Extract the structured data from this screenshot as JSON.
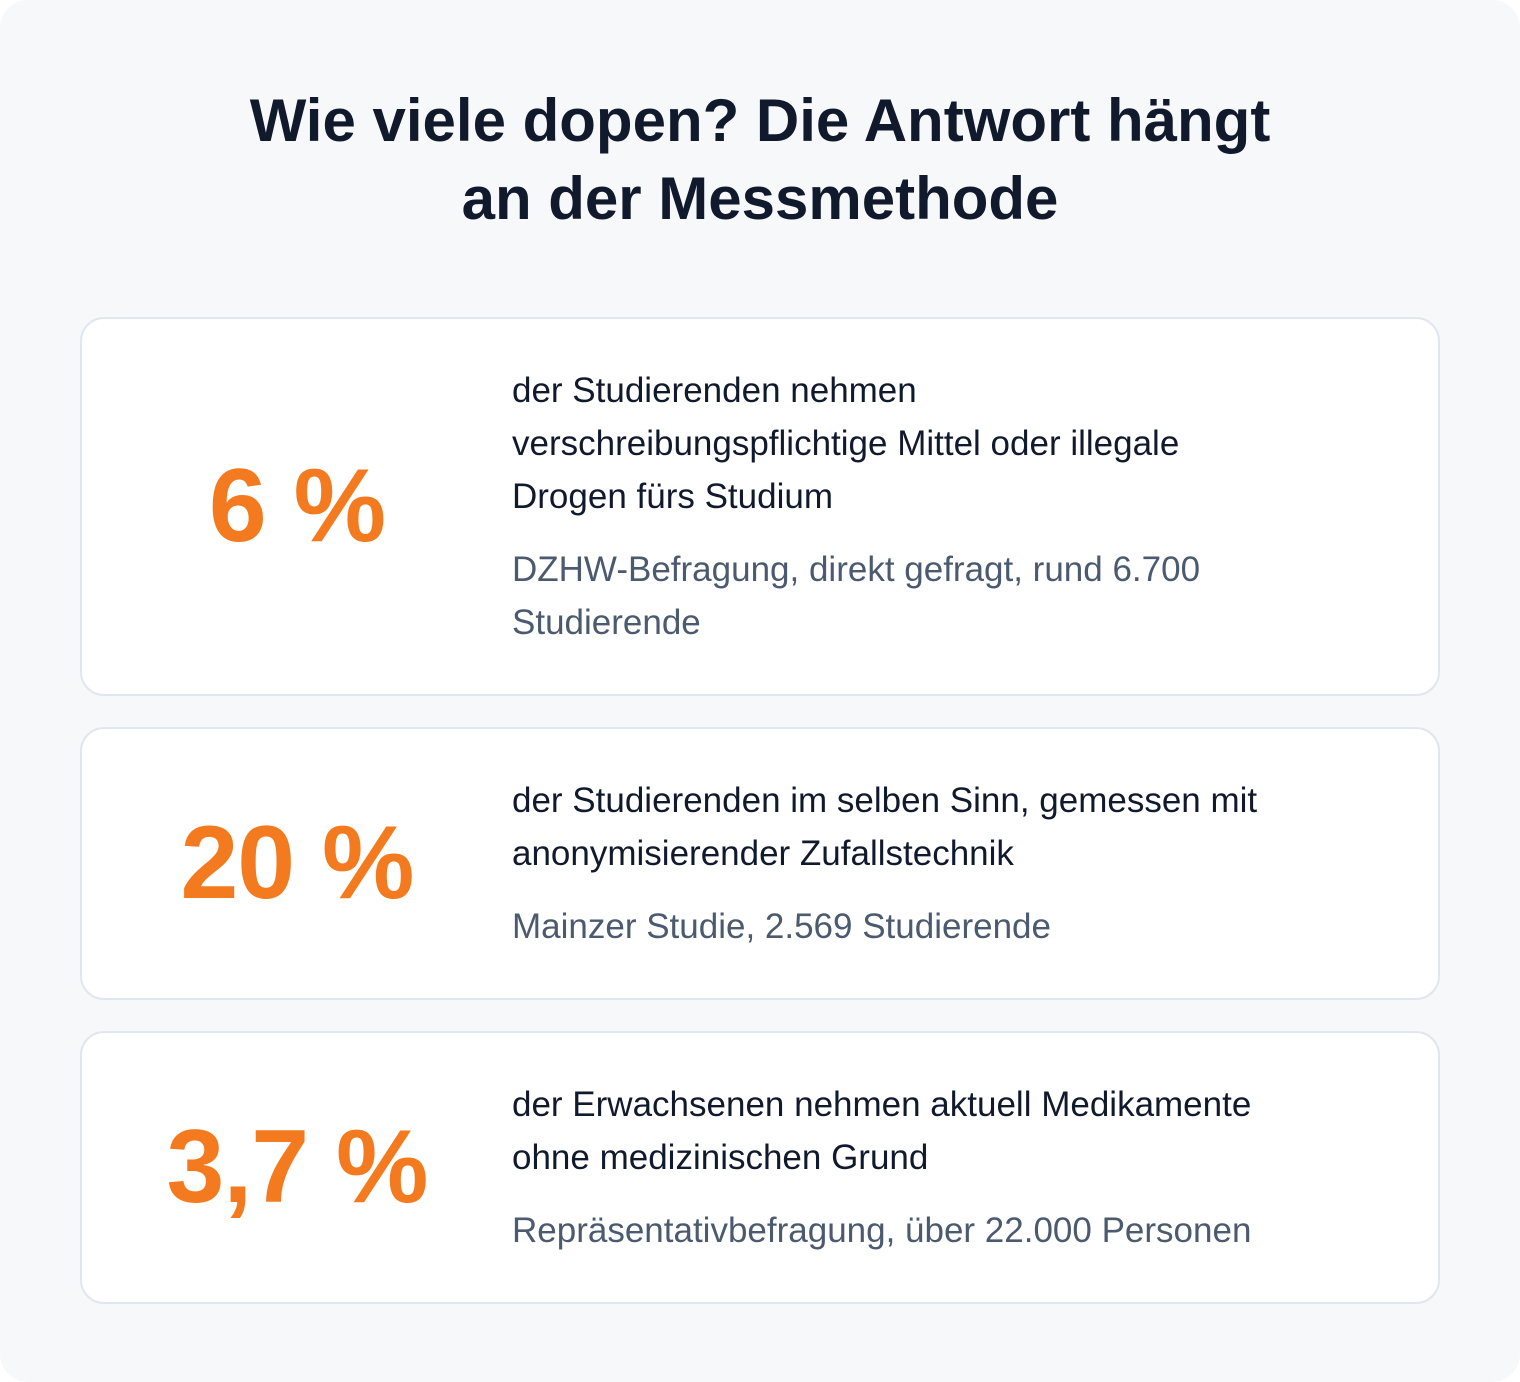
{
  "title": {
    "line1": "Wie viele dopen? Die Antwort hängt",
    "line2": "an der Messmethode"
  },
  "colors": {
    "accent": "#f47a1f",
    "text": "#111a2d",
    "muted": "#4b5a6e",
    "background": "#f7f8fa",
    "card_border": "#e2e6ee"
  },
  "stats": [
    {
      "value": "6 %",
      "description_lines": [
        "der Studierenden nehmen",
        "verschreibungspflichtige Mittel oder illegale",
        "Drogen fürs Studium"
      ],
      "source_lines": [
        "DZHW-Befragung, direkt gefragt, rund 6.700",
        "Studierende"
      ]
    },
    {
      "value": "20 %",
      "description_lines": [
        "der Studierenden im selben Sinn, gemessen mit",
        "anonymisierender Zufallstechnik"
      ],
      "source_lines": [
        "Mainzer Studie, 2.569 Studierende"
      ]
    },
    {
      "value": "3,7 %",
      "description_lines": [
        "der Erwachsenen nehmen aktuell Medikamente",
        "ohne medizinischen Grund"
      ],
      "source_lines": [
        "Repräsentativbefragung, über 22.000 Personen"
      ]
    }
  ]
}
